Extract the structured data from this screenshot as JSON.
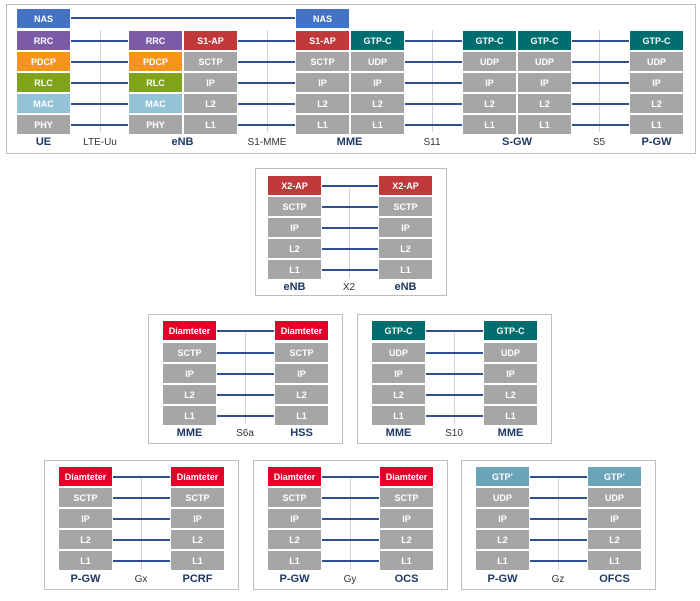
{
  "colors": {
    "nas": "#4472c4",
    "rrc": "#7b5ba6",
    "pdcp": "#f7941d",
    "rlc": "#7fa41a",
    "mac": "#93c3d6",
    "gray": "#a6a6a6",
    "red_dark": "#c0393b",
    "red": "#e2002a",
    "teal": "#006d6f",
    "gtp_prime": "#6ba3b8",
    "line": "#2f4f8f",
    "node_text": "#1f3864"
  },
  "top": {
    "ue_stack": [
      "NAS",
      "RRC",
      "PDCP",
      "RLC",
      "MAC",
      "PHY"
    ],
    "enb_left_stack": [
      "RRC",
      "PDCP",
      "RLC",
      "MAC",
      "PHY"
    ],
    "enb_right_stack": [
      "S1-AP",
      "SCTP",
      "IP",
      "L2",
      "L1"
    ],
    "mme_left_stack": [
      "NAS",
      "S1-AP",
      "SCTP",
      "IP",
      "L2",
      "L1"
    ],
    "mme_right_stack": [
      "GTP-C",
      "UDP",
      "IP",
      "L2",
      "L1"
    ],
    "sgw_stack": [
      "GTP-C",
      "UDP",
      "IP",
      "L2",
      "L1"
    ],
    "pgw_stack": [
      "GTP-C",
      "UDP",
      "IP",
      "L2",
      "L1"
    ],
    "nodes": [
      "UE",
      "eNB",
      "MME",
      "S-GW",
      "P-GW"
    ],
    "interfaces": [
      "LTE-Uu",
      "S1-MME",
      "S11",
      "S5"
    ]
  },
  "x2": {
    "stack": [
      "X2-AP",
      "SCTP",
      "IP",
      "L2",
      "L1"
    ],
    "left_node": "eNB",
    "right_node": "eNB",
    "interface": "X2"
  },
  "s6a": {
    "stack": [
      "Diamteter",
      "SCTP",
      "IP",
      "L2",
      "L1"
    ],
    "left_node": "MME",
    "right_node": "HSS",
    "interface": "S6a"
  },
  "s10": {
    "stack": [
      "GTP-C",
      "UDP",
      "IP",
      "L2",
      "L1"
    ],
    "left_node": "MME",
    "right_node": "MME",
    "interface": "S10"
  },
  "gx": {
    "stack": [
      "Diamteter",
      "SCTP",
      "IP",
      "L2",
      "L1"
    ],
    "left_node": "P-GW",
    "right_node": "PCRF",
    "interface": "Gx"
  },
  "gy": {
    "stack": [
      "Diamteter",
      "SCTP",
      "IP",
      "L2",
      "L1"
    ],
    "left_node": "P-GW",
    "right_node": "OCS",
    "interface": "Gy"
  },
  "gz": {
    "stack": [
      "GTP’",
      "UDP",
      "IP",
      "L2",
      "L1"
    ],
    "left_node": "P-GW",
    "right_node": "OFCS",
    "interface": "Gz"
  }
}
